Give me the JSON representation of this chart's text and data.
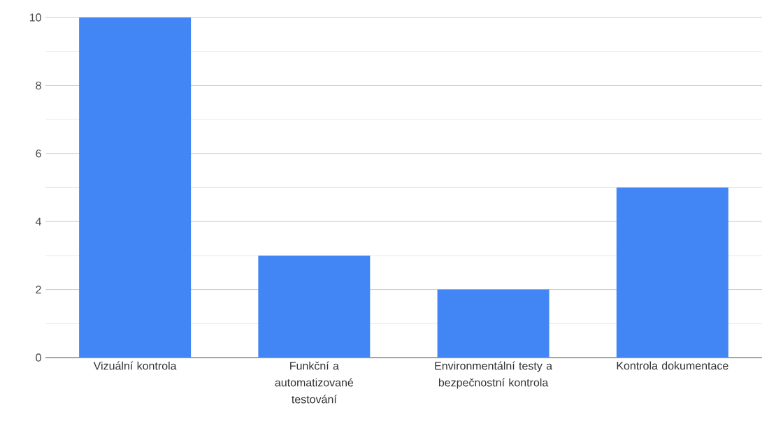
{
  "chart_data": {
    "type": "bar",
    "categories": [
      "Vizuální kontrola",
      "Funkční a automatizované testování",
      "Environmentální testy a bezpečnostní kontrola",
      "Kontrola dokumentace"
    ],
    "values": [
      10,
      3,
      2,
      5
    ],
    "color": "#4285f4",
    "ylim": [
      0,
      10
    ],
    "yticks": [
      0,
      2,
      4,
      6,
      8,
      10
    ],
    "grid": "y"
  }
}
